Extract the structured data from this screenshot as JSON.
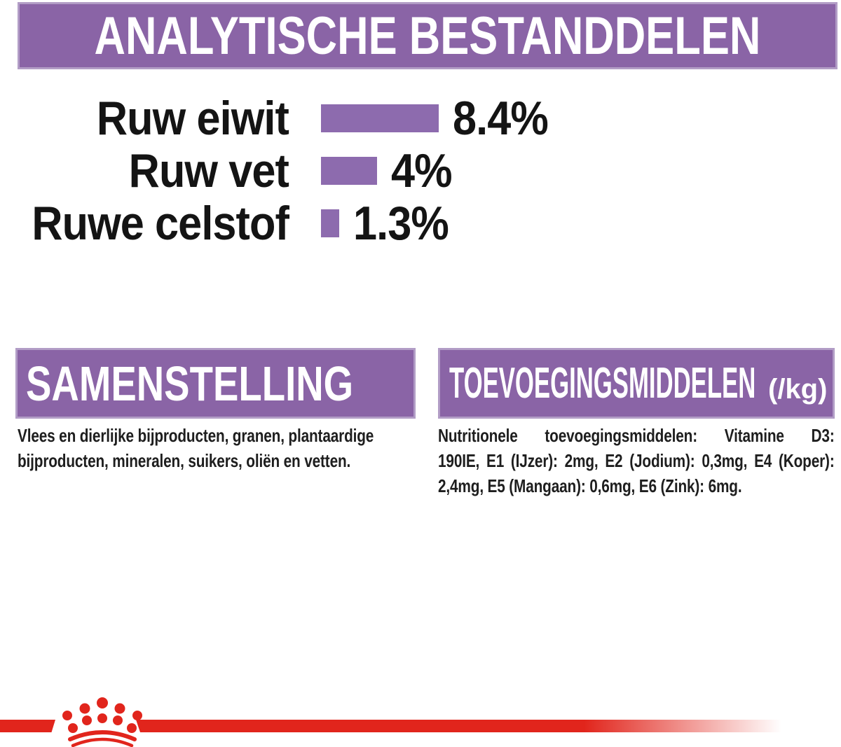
{
  "colors": {
    "banner_purple": "#8a64a6",
    "banner_border_purple": "#b29dc6",
    "bar_purple": "#8d6bae",
    "brand_red": "#e1251c",
    "text_black": "#1c1c1c",
    "white": "#ffffff"
  },
  "header": {
    "title": "ANALYTISCHE BESTANDDELEN"
  },
  "chart_data": {
    "type": "bar",
    "orientation": "horizontal",
    "title": "ANALYTISCHE BESTANDDELEN",
    "categories": [
      "Ruw eiwit",
      "Ruw vet",
      "Ruwe celstof"
    ],
    "values": [
      8.4,
      4,
      1.3
    ],
    "value_labels": [
      "8.4%",
      "4%",
      "1.3%"
    ],
    "unit": "%",
    "xlim": [
      0,
      10
    ],
    "grid": false,
    "bar_color": "#8d6bae",
    "value_label_position": "right-of-bar",
    "category_label_position": "left-of-bar"
  },
  "sections": {
    "samenstelling": {
      "title": "SAMENSTELLING",
      "body_lines": [
        "Vlees en dierlijke bijproducten, granen, plantaardige",
        "bijproducten, mineralen, suikers, oliën en vetten."
      ]
    },
    "toevoegingsmiddelen": {
      "title": "TOEVOEGINGSMIDDELEN",
      "title_suffix": "(/kg)",
      "body_lines": [
        "Nutritionele toevoegingsmiddelen: Vitamine D3:",
        "190IE, E1 (IJzer): 2mg, E2 (Jodium): 0,3mg, E4 (Koper):",
        "2,4mg, E5 (Mangaan): 0,6mg, E6 (Zink): 6mg."
      ]
    }
  },
  "footer": {
    "logo_icon": "royal-canin-crown",
    "stripe_color": "#e1251c"
  }
}
